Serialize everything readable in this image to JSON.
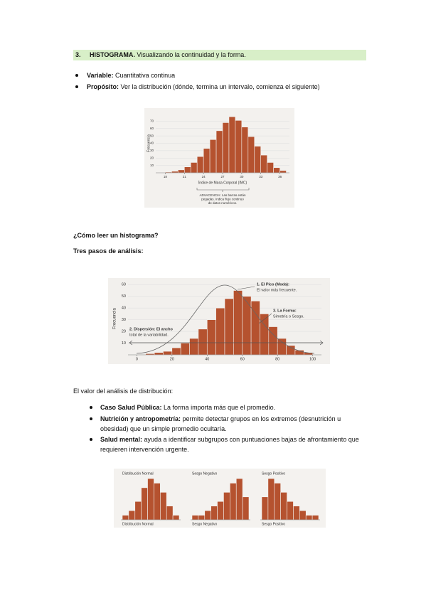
{
  "heading": {
    "number": "3.",
    "title": "HISTOGRAMA.",
    "subtitle": "Visualizando la continuidad y la forma."
  },
  "intro_bullets": [
    {
      "label": "Variable:",
      "text": "Cuantitativa continua"
    },
    {
      "label": "Propósito:",
      "text": "Ver la distribución (dónde, termina un intervalo, comienza el siguiente)"
    }
  ],
  "figure1": {
    "ylabel": "Frecuencia",
    "xlabel": "Índice de Masa Corporal (IMC)",
    "note": [
      "ADVACENCIA: Las barras están",
      "pegadas. Indica flujo continuo",
      "de datos numéricos."
    ],
    "bins": [
      18,
      19,
      20,
      21,
      22,
      23,
      24,
      25,
      26,
      27,
      28,
      29,
      30,
      31,
      32,
      33,
      34,
      35,
      36,
      37
    ],
    "counts": [
      1,
      2,
      4,
      8,
      14,
      22,
      33,
      45,
      57,
      68,
      76,
      71,
      62,
      49,
      36,
      24,
      14,
      7,
      3
    ],
    "xlim": [
      16.5,
      37.5
    ],
    "ylim": [
      0,
      80
    ],
    "xticks": [
      18,
      21,
      24,
      27,
      30,
      33,
      36
    ],
    "yticks": [
      10,
      20,
      30,
      40,
      50,
      60,
      70
    ]
  },
  "section_title": "¿Cómo leer un histograma?",
  "steps_title": "Tres pasos de análisis:",
  "figure2": {
    "ylabel": "Frecuencia",
    "annotations": {
      "peak": [
        "1. El Pico (Moda):",
        "El valor más frecuente."
      ],
      "shape": [
        "3. La Forma:",
        "Simetría o Sesgo."
      ],
      "spread": [
        "2. Dispersión: El ancho",
        "total de la variabilidad."
      ]
    },
    "bins": [
      5,
      10,
      15,
      20,
      25,
      30,
      35,
      40,
      45,
      50,
      55,
      60,
      65,
      70,
      75,
      80,
      85,
      90,
      95,
      100
    ],
    "counts": [
      1,
      2,
      3,
      6,
      10,
      14,
      22,
      30,
      40,
      48,
      55,
      50,
      46,
      35,
      24,
      14,
      8,
      4,
      2
    ],
    "xlim": [
      -5,
      105
    ],
    "ylim": [
      0,
      62
    ],
    "xticks": [
      0,
      20,
      40,
      60,
      80,
      100
    ],
    "yticks": [
      10,
      20,
      30,
      40,
      50,
      60
    ]
  },
  "value_title": "El valor del análisis de distribución:",
  "value_bullets": [
    {
      "label": "Caso Salud Pública:",
      "text": "La forma importa más que el promedio."
    },
    {
      "label": "Nutrición y antropometría:",
      "text": "permite detectar grupos en los extremos (desnutrición u obesidad) que un simple promedio ocultaría."
    },
    {
      "label": "Salud mental:",
      "text": "ayuda a identificar subgrupos con puntuaciones bajas de afrontamiento que requieren intervención urgente."
    }
  ],
  "figure3": {
    "panels": [
      {
        "title": "Distribución Normal",
        "caption": "Distribución Normal",
        "counts": [
          1,
          2,
          4,
          7,
          9,
          8,
          6,
          3,
          1
        ]
      },
      {
        "title": "Sesgo Negativo",
        "caption": "Sesgo Negativo",
        "counts": [
          1,
          1,
          2,
          3,
          4,
          6,
          8,
          9,
          5
        ]
      },
      {
        "title": "Sesgo Positivo",
        "caption": "Sesgo Positivo",
        "counts": [
          5,
          9,
          8,
          6,
          4,
          3,
          2,
          1,
          1
        ]
      }
    ]
  }
}
